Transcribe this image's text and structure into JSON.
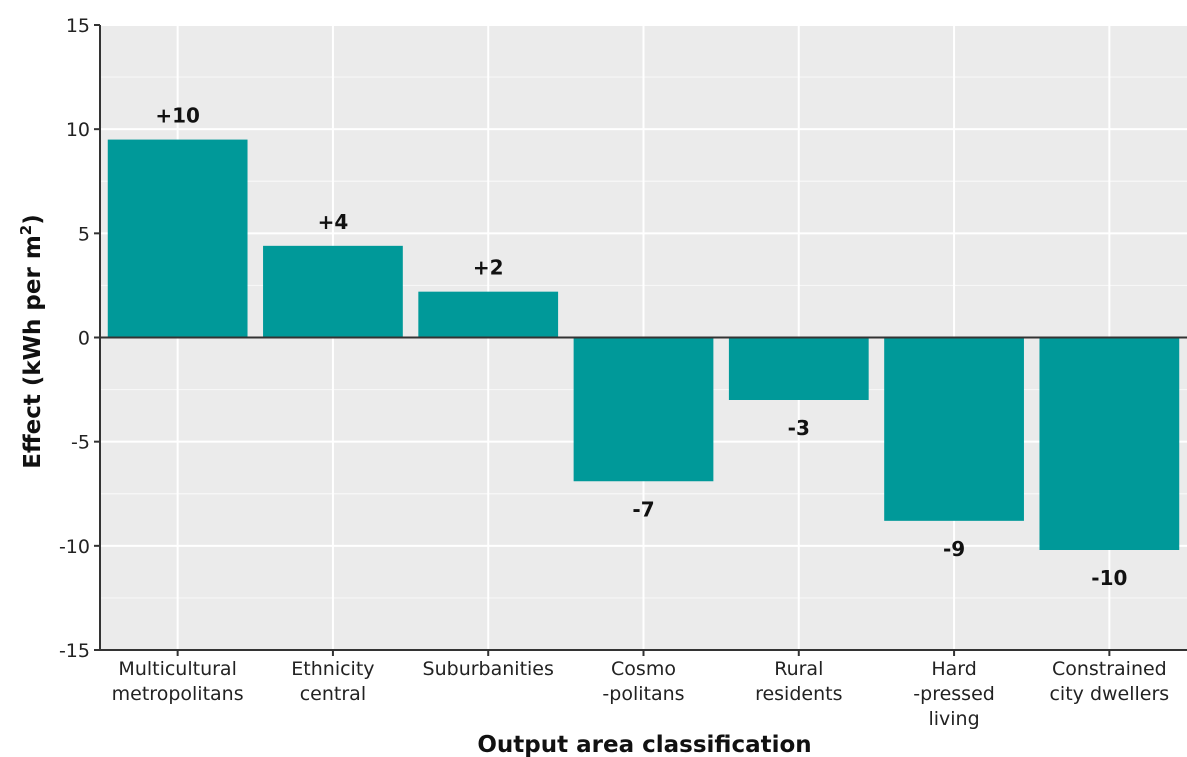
{
  "chart_data": {
    "type": "bar",
    "title": "",
    "xlabel": "Output area classification",
    "ylabel": {
      "text": "Effect (kWh per m",
      "sup": "2",
      "end": ")"
    },
    "ylim": [
      -15,
      15
    ],
    "yticks": [
      15,
      10,
      5,
      0,
      -5,
      -10,
      -15
    ],
    "ytick_labels": [
      "15",
      "10",
      "5",
      "0",
      "-5",
      "-10",
      "-15"
    ],
    "grid": true,
    "bar_color": "#009999",
    "panel_color": "#ebebeb",
    "categories": [
      [
        "Multicultural",
        "metropolitans"
      ],
      [
        "Ethnicity",
        "central"
      ],
      [
        "Suburbanities"
      ],
      [
        "Cosmo",
        "-politans"
      ],
      [
        "Rural",
        "residents"
      ],
      [
        "Hard",
        "-pressed",
        "living"
      ],
      [
        "Constrained",
        "city dwellers"
      ]
    ],
    "values": [
      9.5,
      4.4,
      2.2,
      -6.9,
      -3.0,
      -8.8,
      -10.2
    ],
    "data_labels": [
      "+10",
      "+4",
      "+2",
      "-7",
      "-3",
      "-9",
      "-10"
    ]
  }
}
